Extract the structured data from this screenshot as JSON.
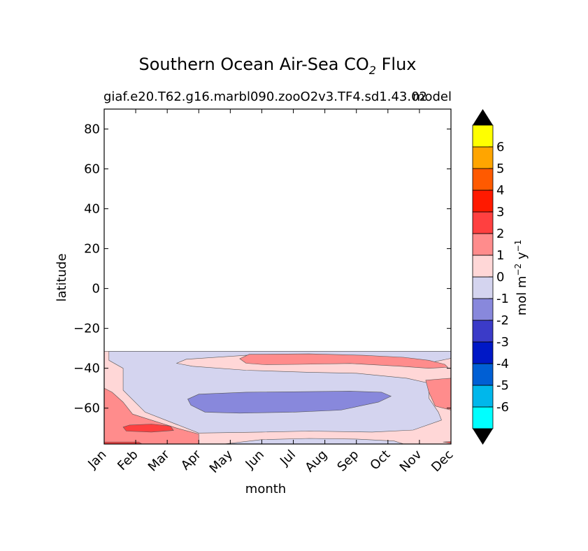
{
  "chart_data": {
    "type": "contourf",
    "title": "Southern Ocean Air-Sea CO",
    "title_subscript": "2",
    "title_suffix": " Flux",
    "subtitle_left": "giaf.e20.T62.g16.marbl090.zooO2v3.TF4.sd1.43.02",
    "subtitle_right": "model",
    "xlabel": "month",
    "ylabel": "latitude",
    "x_categories": [
      "Jan",
      "Feb",
      "Mar",
      "Apr",
      "May",
      "Jun",
      "Jul",
      "Aug",
      "Sep",
      "Oct",
      "Nov",
      "Dec"
    ],
    "ylim": [
      -78,
      90
    ],
    "yticks": [
      80,
      60,
      40,
      20,
      0,
      -20,
      -40,
      -60
    ],
    "data_lat_range": [
      -78,
      -31.5
    ],
    "colorbar": {
      "label": "mol m",
      "label_exp1": "−2",
      "label_mid": " y",
      "label_exp2": "−1",
      "levels": [
        -7,
        -6,
        -5,
        -4,
        -3,
        -2,
        -1,
        0,
        1,
        2,
        3,
        4,
        5,
        6,
        7
      ],
      "ticks": [
        6,
        5,
        4,
        3,
        2,
        1,
        0,
        -1,
        -2,
        -3,
        -4,
        -5,
        -6
      ],
      "colors": [
        "#00ffff",
        "#00b7eb",
        "#005fd4",
        "#0018c6",
        "#3b3bc8",
        "#8888dc",
        "#d4d4ef",
        "#ffd7d7",
        "#ff8c8c",
        "#ff4040",
        "#ff1a00",
        "#ff5a00",
        "#ffa500",
        "#ffff00"
      ],
      "extend_color": "#000000"
    },
    "regions": [
      {
        "name": "background-0-1",
        "level_range": [
          0,
          1
        ],
        "color": "#ffd7d7"
      },
      {
        "name": "subtropical-neg",
        "level_range": [
          -1,
          0
        ],
        "color": "#d4d4ef"
      },
      {
        "name": "southern-neg-core",
        "level_range": [
          -2,
          -1
        ],
        "color": "#8888dc"
      },
      {
        "name": "subtropical-pos",
        "level_range": [
          1,
          2
        ],
        "color": "#ff8c8c"
      },
      {
        "name": "east-pos",
        "level_range": [
          1,
          2
        ],
        "color": "#ff8c8c"
      },
      {
        "name": "austral-summer-pos",
        "level_range": [
          1,
          2
        ],
        "color": "#ff8c8c"
      },
      {
        "name": "austral-summer-max",
        "level_range": [
          2,
          3
        ],
        "color": "#ff4040"
      },
      {
        "name": "antarctic-margin-low",
        "level_range": [
          -1,
          0
        ],
        "color": "#d4d4ef"
      }
    ]
  }
}
